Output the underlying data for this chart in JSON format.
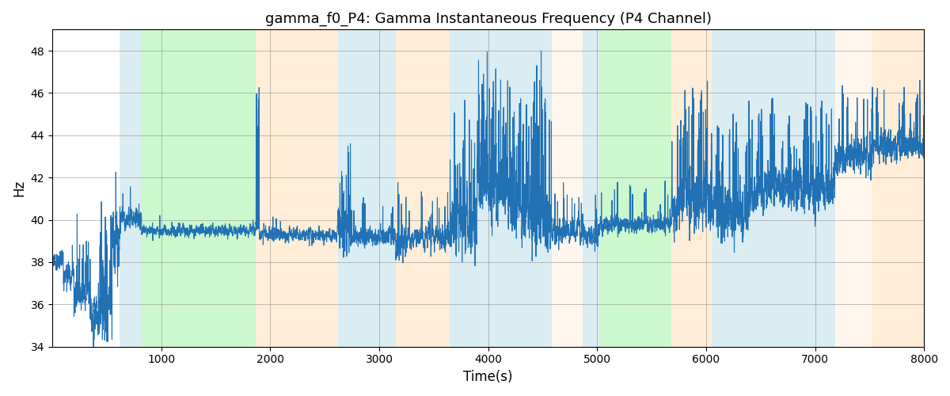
{
  "title": "gamma_f0_P4: Gamma Instantaneous Frequency (P4 Channel)",
  "xlabel": "Time(s)",
  "ylabel": "Hz",
  "xlim": [
    0,
    8000
  ],
  "ylim": [
    34,
    49
  ],
  "yticks": [
    34,
    36,
    38,
    40,
    42,
    44,
    46,
    48
  ],
  "xticks": [
    1000,
    2000,
    3000,
    4000,
    5000,
    6000,
    7000,
    8000
  ],
  "line_color": "#2171b5",
  "line_width": 0.8,
  "background_color": "#ffffff",
  "bands": [
    {
      "xmin": 620,
      "xmax": 820,
      "color": "#add8e6",
      "alpha": 0.45
    },
    {
      "xmin": 820,
      "xmax": 1870,
      "color": "#90ee90",
      "alpha": 0.45
    },
    {
      "xmin": 1870,
      "xmax": 2620,
      "color": "#ffd8a8",
      "alpha": 0.45
    },
    {
      "xmin": 2620,
      "xmax": 3150,
      "color": "#add8e6",
      "alpha": 0.45
    },
    {
      "xmin": 3150,
      "xmax": 3650,
      "color": "#ffd8a8",
      "alpha": 0.45
    },
    {
      "xmin": 3650,
      "xmax": 4580,
      "color": "#add8e6",
      "alpha": 0.45
    },
    {
      "xmin": 4580,
      "xmax": 4870,
      "color": "#ffd8a8",
      "alpha": 0.2
    },
    {
      "xmin": 4870,
      "xmax": 5020,
      "color": "#add8e6",
      "alpha": 0.45
    },
    {
      "xmin": 5020,
      "xmax": 5680,
      "color": "#90ee90",
      "alpha": 0.45
    },
    {
      "xmin": 5680,
      "xmax": 6050,
      "color": "#ffd8a8",
      "alpha": 0.45
    },
    {
      "xmin": 6050,
      "xmax": 7180,
      "color": "#add8e6",
      "alpha": 0.45
    },
    {
      "xmin": 7180,
      "xmax": 7520,
      "color": "#ffd8a8",
      "alpha": 0.2
    },
    {
      "xmin": 7520,
      "xmax": 8000,
      "color": "#ffd8a8",
      "alpha": 0.45
    }
  ],
  "segments": [
    {
      "ts": 0,
      "te": 100,
      "mean": 38.1,
      "std": 0.4,
      "spikes": 0.0,
      "spike_mag": 0
    },
    {
      "ts": 100,
      "te": 200,
      "mean": 37.5,
      "std": 0.6,
      "spikes": 0.02,
      "spike_mag": 2
    },
    {
      "ts": 200,
      "te": 350,
      "mean": 36.5,
      "std": 0.8,
      "spikes": 0.05,
      "spike_mag": 3
    },
    {
      "ts": 350,
      "te": 450,
      "mean": 35.5,
      "std": 1.0,
      "spikes": 0.05,
      "spike_mag": 4
    },
    {
      "ts": 450,
      "te": 550,
      "mean": 36.0,
      "std": 1.5,
      "spikes": 0.08,
      "spike_mag": 5
    },
    {
      "ts": 550,
      "te": 620,
      "mean": 39.0,
      "std": 1.2,
      "spikes": 0.05,
      "spike_mag": 3
    },
    {
      "ts": 620,
      "te": 820,
      "mean": 40.0,
      "std": 0.5,
      "spikes": 0.01,
      "spike_mag": 2
    },
    {
      "ts": 820,
      "te": 1870,
      "mean": 39.5,
      "std": 0.25,
      "spikes": 0.005,
      "spike_mag": 1
    },
    {
      "ts": 1870,
      "te": 1900,
      "mean": 39.5,
      "std": 0.5,
      "spikes": 0.3,
      "spike_mag": 7
    },
    {
      "ts": 1900,
      "te": 2620,
      "mean": 39.3,
      "std": 0.3,
      "spikes": 0.005,
      "spike_mag": 1
    },
    {
      "ts": 2620,
      "te": 2750,
      "mean": 39.5,
      "std": 1.2,
      "spikes": 0.1,
      "spike_mag": 4
    },
    {
      "ts": 2750,
      "te": 3150,
      "mean": 39.2,
      "std": 0.4,
      "spikes": 0.02,
      "spike_mag": 2
    },
    {
      "ts": 3150,
      "te": 3250,
      "mean": 38.8,
      "std": 0.8,
      "spikes": 0.05,
      "spike_mag": 3
    },
    {
      "ts": 3250,
      "te": 3650,
      "mean": 39.2,
      "std": 0.5,
      "spikes": 0.02,
      "spike_mag": 2
    },
    {
      "ts": 3650,
      "te": 3900,
      "mean": 40.0,
      "std": 1.5,
      "spikes": 0.08,
      "spike_mag": 5
    },
    {
      "ts": 3900,
      "te": 4200,
      "mean": 41.5,
      "std": 1.8,
      "spikes": 0.1,
      "spike_mag": 5
    },
    {
      "ts": 4200,
      "te": 4400,
      "mean": 40.5,
      "std": 1.5,
      "spikes": 0.08,
      "spike_mag": 5
    },
    {
      "ts": 4400,
      "te": 4580,
      "mean": 40.0,
      "std": 1.8,
      "spikes": 0.12,
      "spike_mag": 7
    },
    {
      "ts": 4580,
      "te": 4870,
      "mean": 39.5,
      "std": 0.6,
      "spikes": 0.02,
      "spike_mag": 2
    },
    {
      "ts": 4870,
      "te": 5020,
      "mean": 39.3,
      "std": 0.5,
      "spikes": 0.02,
      "spike_mag": 2
    },
    {
      "ts": 5020,
      "te": 5680,
      "mean": 39.8,
      "std": 0.4,
      "spikes": 0.02,
      "spike_mag": 2
    },
    {
      "ts": 5680,
      "te": 5800,
      "mean": 40.5,
      "std": 1.0,
      "spikes": 0.06,
      "spike_mag": 4
    },
    {
      "ts": 5800,
      "te": 6050,
      "mean": 41.0,
      "std": 1.5,
      "spikes": 0.08,
      "spike_mag": 5
    },
    {
      "ts": 6050,
      "te": 6400,
      "mean": 40.5,
      "std": 1.2,
      "spikes": 0.06,
      "spike_mag": 4
    },
    {
      "ts": 6400,
      "te": 7180,
      "mean": 41.5,
      "std": 1.0,
      "spikes": 0.05,
      "spike_mag": 4
    },
    {
      "ts": 7180,
      "te": 7520,
      "mean": 43.0,
      "std": 0.8,
      "spikes": 0.04,
      "spike_mag": 3
    },
    {
      "ts": 7520,
      "te": 8000,
      "mean": 43.5,
      "std": 0.7,
      "spikes": 0.04,
      "spike_mag": 3
    }
  ],
  "seed": 7,
  "n_points": 8000
}
